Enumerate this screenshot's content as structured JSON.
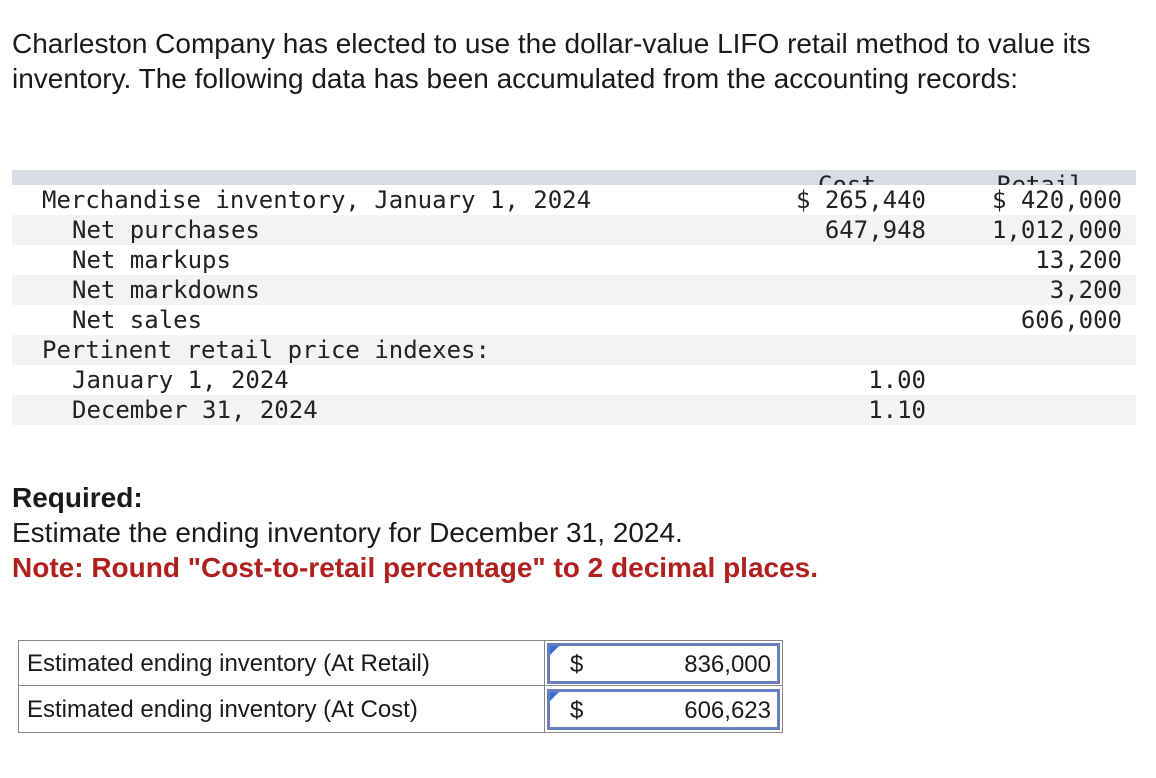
{
  "intro": "Charleston Company has elected to use the dollar-value LIFO retail method to value its inventory. The following data has been accumulated from the accounting records:",
  "table": {
    "header": {
      "cost": "Cost",
      "retail": "Retail"
    },
    "rows": [
      {
        "label": "Merchandise inventory, January 1, 2024",
        "cost": "$ 265,440",
        "retail": "$ 420,000"
      },
      {
        "label": "Net purchases",
        "cost": "647,948",
        "retail": "1,012,000"
      },
      {
        "label": "Net markups",
        "cost": "",
        "retail": "13,200"
      },
      {
        "label": "Net markdowns",
        "cost": "",
        "retail": "3,200"
      },
      {
        "label": "Net sales",
        "cost": "",
        "retail": "606,000"
      },
      {
        "label": "Pertinent retail price indexes:",
        "cost": "",
        "retail": ""
      },
      {
        "label": "January 1, 2024",
        "cost": "1.00",
        "retail": ""
      },
      {
        "label": "December 31, 2024",
        "cost": "1.10",
        "retail": ""
      }
    ]
  },
  "required": {
    "title": "Required:",
    "text": "Estimate the ending inventory for December 31, 2024.",
    "note": "Note: Round \"Cost-to-retail percentage\" to 2 decimal places."
  },
  "answers": [
    {
      "label": "Estimated ending inventory (At Retail)",
      "currency": "$",
      "value": "836,000"
    },
    {
      "label": "Estimated ending inventory (At Cost)",
      "currency": "$",
      "value": "606,623"
    }
  ],
  "colors": {
    "header_bg": "#d9dce4",
    "note_red": "#b0201c",
    "input_border": "#6a7fbf",
    "flag_blue": "#3b6fd8"
  }
}
